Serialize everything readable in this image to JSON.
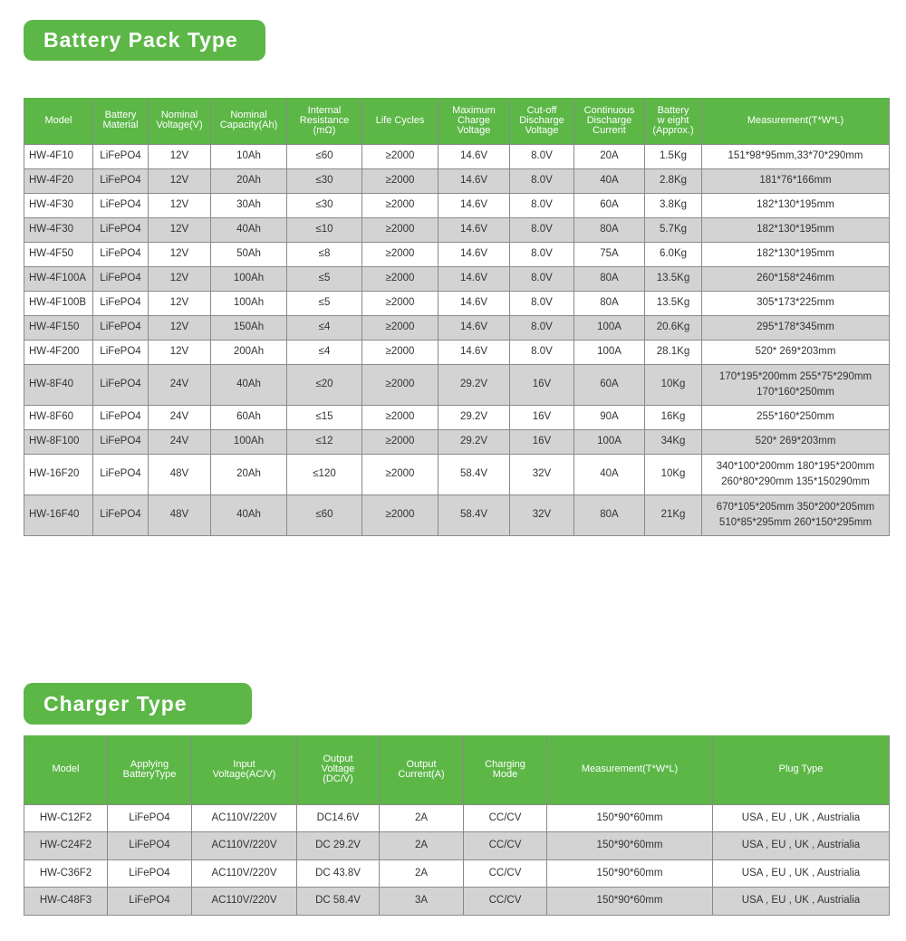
{
  "battery": {
    "title": "Battery Pack Type",
    "headers": [
      "Model",
      "Battery\nMaterial",
      "Nominal\nVoltage(V)",
      "Nominal\nCapacity(Ah)",
      "Internal\nResistance\n(mΩ)",
      "Life Cycles",
      "Maximum\nCharge\nVoltage",
      "Cut-off\nDischarge\nVoltage",
      "Continuous\nDischarge\nCurrent",
      "Battery\nw eight\n(Approx.)",
      "Measurement(T*W*L)"
    ],
    "rows": [
      [
        "HW-4F10",
        "LiFePO4",
        "12V",
        "10Ah",
        "≤60",
        "≥2000",
        "14.6V",
        "8.0V",
        "20A",
        "1.5Kg",
        "151*98*95mm,33*70*290mm"
      ],
      [
        "HW-4F20",
        "LiFePO4",
        "12V",
        "20Ah",
        "≤30",
        "≥2000",
        "14.6V",
        "8.0V",
        "40A",
        "2.8Kg",
        "181*76*166mm"
      ],
      [
        "HW-4F30",
        "LiFePO4",
        "12V",
        "30Ah",
        "≤30",
        "≥2000",
        "14.6V",
        "8.0V",
        "60A",
        "3.8Kg",
        "182*130*195mm"
      ],
      [
        "HW-4F30",
        "LiFePO4",
        "12V",
        "40Ah",
        "≤10",
        "≥2000",
        "14.6V",
        "8.0V",
        "80A",
        "5.7Kg",
        "182*130*195mm"
      ],
      [
        "HW-4F50",
        "LiFePO4",
        "12V",
        "50Ah",
        "≤8",
        "≥2000",
        "14.6V",
        "8.0V",
        "75A",
        "6.0Kg",
        "182*130*195mm"
      ],
      [
        "HW-4F100A",
        "LiFePO4",
        "12V",
        "100Ah",
        "≤5",
        "≥2000",
        "14.6V",
        "8.0V",
        "80A",
        "13.5Kg",
        "260*158*246mm"
      ],
      [
        "HW-4F100B",
        "LiFePO4",
        "12V",
        "100Ah",
        "≤5",
        "≥2000",
        "14.6V",
        "8.0V",
        "80A",
        "13.5Kg",
        "305*173*225mm"
      ],
      [
        "HW-4F150",
        "LiFePO4",
        "12V",
        "150Ah",
        "≤4",
        "≥2000",
        "14.6V",
        "8.0V",
        "100A",
        "20.6Kg",
        "295*178*345mm"
      ],
      [
        "HW-4F200",
        "LiFePO4",
        "12V",
        "200Ah",
        "≤4",
        "≥2000",
        "14.6V",
        "8.0V",
        "100A",
        "28.1Kg",
        "520* 269*203mm"
      ],
      [
        "HW-8F40",
        "LiFePO4",
        "24V",
        "40Ah",
        "≤20",
        "≥2000",
        "29.2V",
        "16V",
        "60A",
        "10Kg",
        "170*195*200mm 255*75*290mm\n170*160*250mm"
      ],
      [
        "HW-8F60",
        "LiFePO4",
        "24V",
        "60Ah",
        "≤15",
        "≥2000",
        "29.2V",
        "16V",
        "90A",
        "16Kg",
        "255*160*250mm"
      ],
      [
        "HW-8F100",
        "LiFePO4",
        "24V",
        "100Ah",
        "≤12",
        "≥2000",
        "29.2V",
        "16V",
        "100A",
        "34Kg",
        "520* 269*203mm"
      ],
      [
        "HW-16F20",
        "LiFePO4",
        "48V",
        "20Ah",
        "≤120",
        "≥2000",
        "58.4V",
        "32V",
        "40A",
        "10Kg",
        "340*100*200mm 180*195*200mm\n260*80*290mm 135*150290mm"
      ],
      [
        "HW-16F40",
        "LiFePO4",
        "48V",
        "40Ah",
        "≤60",
        "≥2000",
        "58.4V",
        "32V",
        "80A",
        "21Kg",
        "670*105*205mm 350*200*205mm\n510*85*295mm 260*150*295mm"
      ]
    ]
  },
  "charger": {
    "title": "Charger Type",
    "headers": [
      "Model",
      "Applying\nBatteryType",
      "Input\nVoltage(AC/V)",
      "Output\nVoltage\n(DC/V)",
      "Output\nCurrent(A)",
      "Charging\nMode",
      "Measurement(T*W*L)",
      "Plug Type"
    ],
    "rows": [
      [
        "HW-C12F2",
        "LiFePO4",
        "AC110V/220V",
        "DC14.6V",
        "2A",
        "CC/CV",
        "150*90*60mm",
        "USA , EU , UK , Austrialia"
      ],
      [
        "HW-C24F2",
        "LiFePO4",
        "AC110V/220V",
        "DC 29.2V",
        "2A",
        "CC/CV",
        "150*90*60mm",
        "USA , EU , UK , Austrialia"
      ],
      [
        "HW-C36F2",
        "LiFePO4",
        "AC110V/220V",
        "DC 43.8V",
        "2A",
        "CC/CV",
        "150*90*60mm",
        "USA , EU , UK , Austrialia"
      ],
      [
        "HW-C48F3",
        "LiFePO4",
        "AC110V/220V",
        "DC 58.4V",
        "3A",
        "CC/CV",
        "150*90*60mm",
        "USA , EU , UK , Austrialia"
      ]
    ]
  },
  "colors": {
    "accent": "#5cb747",
    "stripe": "#d3d3d3"
  }
}
